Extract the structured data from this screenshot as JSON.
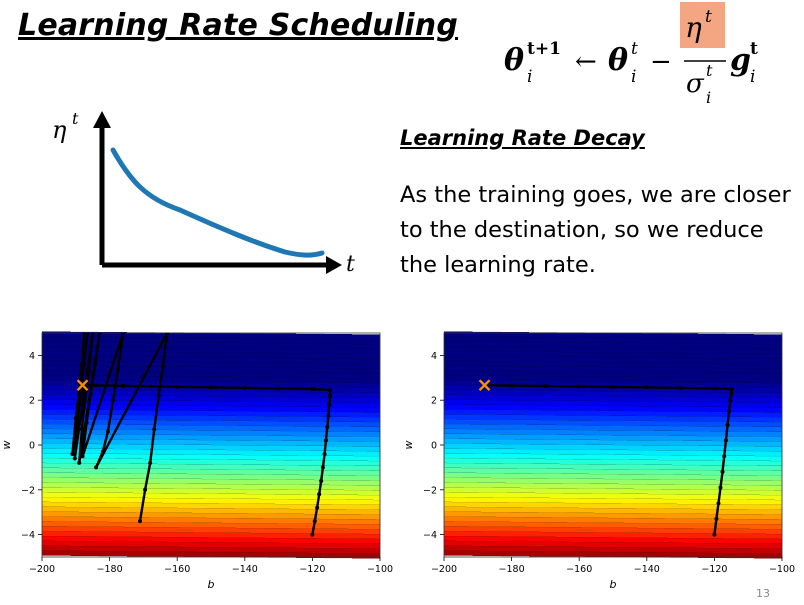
{
  "title": "Learning Rate Scheduling",
  "formula": {
    "lhs_symbol": "θ",
    "lhs_sup": "t+1",
    "lhs_sub": "i",
    "arrow": "←",
    "rhs_symbol": "θ",
    "rhs_sup": "t",
    "rhs_sub": "i",
    "minus": "−",
    "numerator_symbol": "η",
    "numerator_sup": "t",
    "denominator_symbol": "σ",
    "denominator_sup": "t",
    "denominator_sub": "i",
    "grad_symbol": "g",
    "grad_sup": "t",
    "grad_sub": "i",
    "highlight_color": "#f4a582"
  },
  "eta_plot": {
    "y_label_symbol": "η",
    "y_label_sup": "t",
    "x_label": "t",
    "curve_color": "#1f77b4",
    "description": "decreasing"
  },
  "decay": {
    "heading": "Learning Rate Decay",
    "body": "As the training goes, we are closer to the destination, so we reduce the learning rate."
  },
  "chart_data": [
    {
      "type": "contour",
      "title": "",
      "xlabel": "b",
      "ylabel": "w",
      "xlim": [
        -200,
        -100
      ],
      "ylim": [
        -5,
        5
      ],
      "x_ticks": [
        "−200",
        "−180",
        "−160",
        "−140",
        "−120",
        "−100"
      ],
      "y_ticks": [
        "4",
        "2",
        "0",
        "−2",
        "−4"
      ],
      "start": {
        "b": -120,
        "w": -4
      },
      "target": {
        "b": -188,
        "w": 2.67,
        "marker": "x",
        "color": "#ff8c00"
      },
      "path": [
        [
          -120,
          -4
        ],
        [
          -119.3,
          -3.4
        ],
        [
          -118.6,
          -2.8
        ],
        [
          -118,
          -2.2
        ],
        [
          -117.4,
          -1.6
        ],
        [
          -116.9,
          -1
        ],
        [
          -116.4,
          -0.4
        ],
        [
          -116,
          0.2
        ],
        [
          -115.6,
          0.8
        ],
        [
          -115.3,
          1.3
        ],
        [
          -115,
          1.8
        ],
        [
          -114.8,
          2.2
        ],
        [
          -114.8,
          2.45
        ],
        [
          -120,
          2.5
        ],
        [
          -130,
          2.52
        ],
        [
          -140,
          2.55
        ],
        [
          -150,
          2.57
        ],
        [
          -160,
          2.6
        ],
        [
          -168,
          2.62
        ],
        [
          -176,
          2.64
        ],
        [
          -184,
          2.66
        ],
        [
          -188,
          2.67
        ],
        [
          -191,
          -0.4
        ],
        [
          -190,
          1.2
        ],
        [
          -189,
          2.5
        ],
        [
          -188.2,
          3.6
        ],
        [
          -187.5,
          5
        ],
        [
          -186.5,
          5
        ],
        [
          -187.6,
          3.6
        ],
        [
          -188.6,
          2.3
        ],
        [
          -189.5,
          0.8
        ],
        [
          -190.3,
          -0.6
        ],
        [
          -185,
          5
        ],
        [
          -186.2,
          3.3
        ],
        [
          -187.3,
          2
        ],
        [
          -188.2,
          0.7
        ],
        [
          -189,
          -0.8
        ],
        [
          -183,
          5
        ],
        [
          -184.3,
          3.6
        ],
        [
          -185.6,
          2.3
        ],
        [
          -186.8,
          1
        ],
        [
          -188,
          -0.5
        ],
        [
          -176,
          5
        ],
        [
          -177.5,
          3.4
        ],
        [
          -179,
          2
        ],
        [
          -180.5,
          0.6
        ],
        [
          -182,
          -0.3
        ],
        [
          -184,
          -1
        ],
        [
          -163,
          5
        ],
        [
          -164.3,
          3.5
        ],
        [
          -165.5,
          2.2
        ],
        [
          -166.8,
          0.7
        ],
        [
          -168,
          -0.8
        ],
        [
          -169.5,
          -2
        ],
        [
          -171,
          -3.4
        ]
      ]
    },
    {
      "type": "contour",
      "title": "",
      "xlabel": "b",
      "ylabel": "w",
      "xlim": [
        -200,
        -100
      ],
      "ylim": [
        -5,
        5
      ],
      "x_ticks": [
        "−200",
        "−180",
        "−160",
        "−140",
        "−120",
        "−100"
      ],
      "y_ticks": [
        "4",
        "2",
        "0",
        "−2",
        "−4"
      ],
      "start": {
        "b": -120,
        "w": -4
      },
      "target": {
        "b": -188,
        "w": 2.67,
        "marker": "x",
        "color": "#ff8c00"
      },
      "path": [
        [
          -120,
          -4
        ],
        [
          -119.4,
          -3.3
        ],
        [
          -118.8,
          -2.6
        ],
        [
          -118.2,
          -1.9
        ],
        [
          -117.6,
          -1.2
        ],
        [
          -117.1,
          -0.5
        ],
        [
          -116.6,
          0.2
        ],
        [
          -116.1,
          0.9
        ],
        [
          -115.7,
          1.5
        ],
        [
          -115.3,
          2
        ],
        [
          -115,
          2.3
        ],
        [
          -114.8,
          2.5
        ],
        [
          -120,
          2.52
        ],
        [
          -130,
          2.55
        ],
        [
          -140,
          2.57
        ],
        [
          -150,
          2.59
        ],
        [
          -160,
          2.61
        ],
        [
          -170,
          2.63
        ],
        [
          -180,
          2.65
        ],
        [
          -188,
          2.67
        ]
      ]
    }
  ],
  "slide_number": "13"
}
